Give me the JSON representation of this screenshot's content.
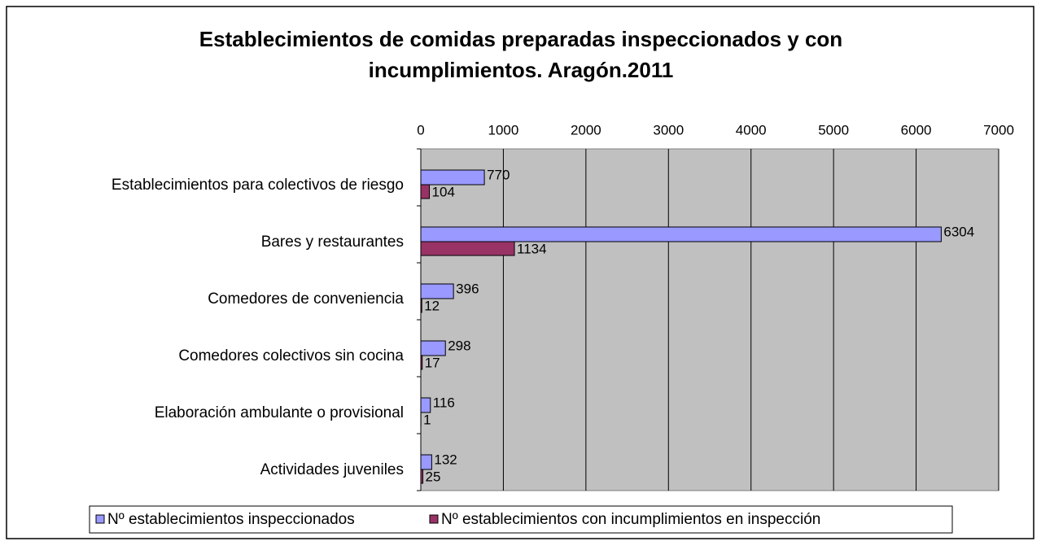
{
  "chart_data": {
    "type": "bar",
    "orientation": "horizontal",
    "title": "Establecimientos de comidas preparadas inspeccionados y con incumplimientos. Aragón.2011",
    "categories": [
      "Establecimientos para colectivos de riesgo",
      "Bares y restaurantes",
      "Comedores de conveniencia",
      "Comedores colectivos sin cocina",
      "Elaboración ambulante o provisional",
      "Actividades juveniles"
    ],
    "series": [
      {
        "name": "Nº establecimientos inspeccionados",
        "color": "#9999ff",
        "values": [
          770,
          6304,
          396,
          298,
          116,
          132
        ]
      },
      {
        "name": "Nº establecimientos con incumplimientos en inspección",
        "color": "#993366",
        "values": [
          104,
          1134,
          12,
          17,
          1,
          25
        ]
      }
    ],
    "xlim": [
      0,
      7000
    ],
    "xticks": [
      0,
      1000,
      2000,
      3000,
      4000,
      5000,
      6000,
      7000
    ],
    "grid": true,
    "legend": "bottom"
  }
}
